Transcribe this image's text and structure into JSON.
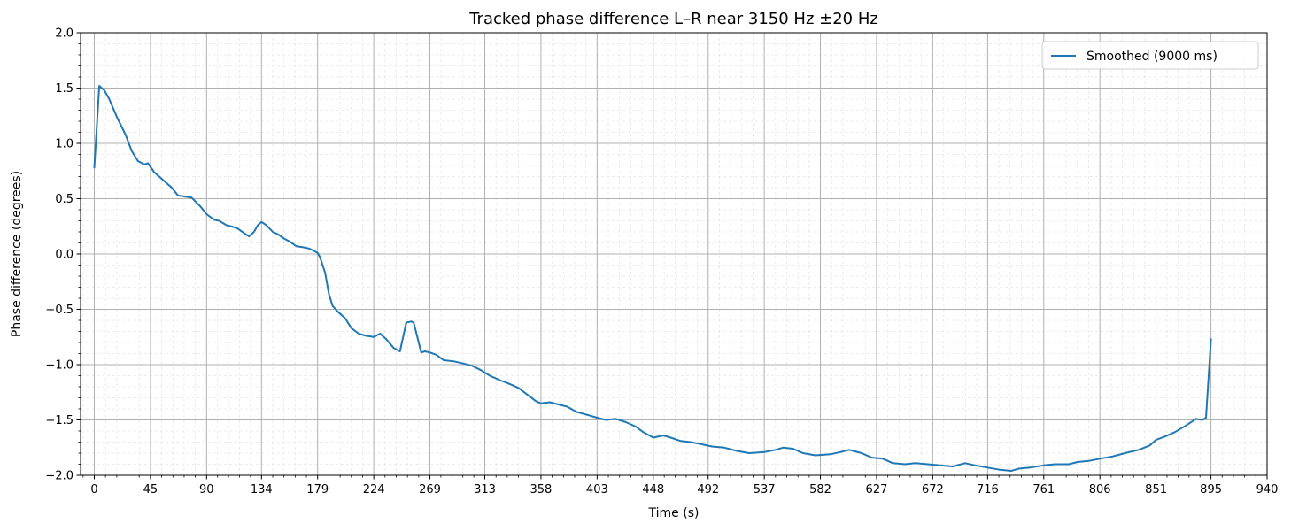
{
  "chart_data": {
    "type": "line",
    "title": "Tracked phase difference L–R near 3150 Hz ±20 Hz",
    "xlabel": "Time (s)",
    "ylabel": "Phase difference (degrees)",
    "xlim": [
      -11,
      940
    ],
    "ylim": [
      -2.0,
      2.0
    ],
    "x_ticks": [
      0,
      45,
      90,
      134,
      179,
      224,
      269,
      313,
      358,
      403,
      448,
      492,
      537,
      582,
      627,
      672,
      716,
      761,
      806,
      851,
      895,
      940
    ],
    "y_ticks": [
      2.0,
      1.5,
      1.0,
      0.5,
      0.0,
      -0.5,
      -1.0,
      -1.5,
      -2.0
    ],
    "y_tick_labels": [
      "2.0",
      "1.5",
      "1.0",
      "0.5",
      "0.0",
      "−0.5",
      "−1.0",
      "−1.5",
      "−2.0"
    ],
    "grid": true,
    "minor_grid": true,
    "legend_position": "top-right",
    "series": [
      {
        "name": "Smoothed (9000 ms)",
        "color": "#1f77b4",
        "x": [
          0,
          4,
          8,
          12,
          18,
          25,
          30,
          35,
          40,
          43,
          48,
          55,
          62,
          67,
          72,
          78,
          85,
          90,
          96,
          100,
          106,
          110,
          115,
          120,
          124,
          128,
          131,
          134,
          138,
          143,
          147,
          152,
          157,
          162,
          168,
          172,
          176,
          179,
          181,
          185,
          188,
          191,
          195,
          201,
          206,
          212,
          218,
          224,
          229,
          234,
          240,
          245,
          250,
          254,
          256,
          262,
          265,
          269,
          274,
          280,
          288,
          296,
          303,
          310,
          317,
          325,
          332,
          340,
          347,
          354,
          358,
          365,
          372,
          379,
          387,
          394,
          403,
          410,
          418,
          426,
          434,
          440,
          448,
          456,
          462,
          470,
          478,
          487,
          495,
          505,
          515,
          525,
          537,
          546,
          552,
          560,
          568,
          578,
          590,
          598,
          605,
          615,
          623,
          632,
          640,
          650,
          658,
          668,
          678,
          688,
          698,
          706,
          716,
          726,
          735,
          741,
          750,
          761,
          770,
          781,
          788,
          797,
          806,
          816,
          826,
          837,
          846,
          851,
          858,
          866,
          875,
          883,
          888,
          891,
          895
        ],
        "y": [
          0.78,
          1.52,
          1.48,
          1.4,
          1.24,
          1.08,
          0.93,
          0.84,
          0.81,
          0.82,
          0.74,
          0.67,
          0.6,
          0.53,
          0.52,
          0.51,
          0.43,
          0.36,
          0.31,
          0.3,
          0.26,
          0.25,
          0.23,
          0.19,
          0.16,
          0.2,
          0.26,
          0.29,
          0.26,
          0.2,
          0.18,
          0.14,
          0.11,
          0.07,
          0.06,
          0.05,
          0.03,
          0.01,
          -0.03,
          -0.17,
          -0.36,
          -0.47,
          -0.52,
          -0.58,
          -0.67,
          -0.72,
          -0.74,
          -0.75,
          -0.72,
          -0.77,
          -0.85,
          -0.88,
          -0.62,
          -0.61,
          -0.62,
          -0.89,
          -0.88,
          -0.89,
          -0.91,
          -0.96,
          -0.97,
          -0.99,
          -1.01,
          -1.05,
          -1.1,
          -1.14,
          -1.17,
          -1.21,
          -1.27,
          -1.33,
          -1.35,
          -1.34,
          -1.36,
          -1.38,
          -1.43,
          -1.45,
          -1.48,
          -1.5,
          -1.49,
          -1.52,
          -1.56,
          -1.61,
          -1.66,
          -1.64,
          -1.66,
          -1.69,
          -1.7,
          -1.72,
          -1.74,
          -1.75,
          -1.78,
          -1.8,
          -1.79,
          -1.77,
          -1.75,
          -1.76,
          -1.8,
          -1.82,
          -1.81,
          -1.79,
          -1.77,
          -1.8,
          -1.84,
          -1.85,
          -1.89,
          -1.9,
          -1.89,
          -1.9,
          -1.91,
          -1.92,
          -1.89,
          -1.91,
          -1.93,
          -1.95,
          -1.96,
          -1.94,
          -1.93,
          -1.91,
          -1.9,
          -1.9,
          -1.88,
          -1.87,
          -1.85,
          -1.83,
          -1.8,
          -1.77,
          -1.73,
          -1.68,
          -1.65,
          -1.61,
          -1.55,
          -1.49,
          -1.5,
          -1.48,
          -0.77
        ]
      }
    ]
  }
}
